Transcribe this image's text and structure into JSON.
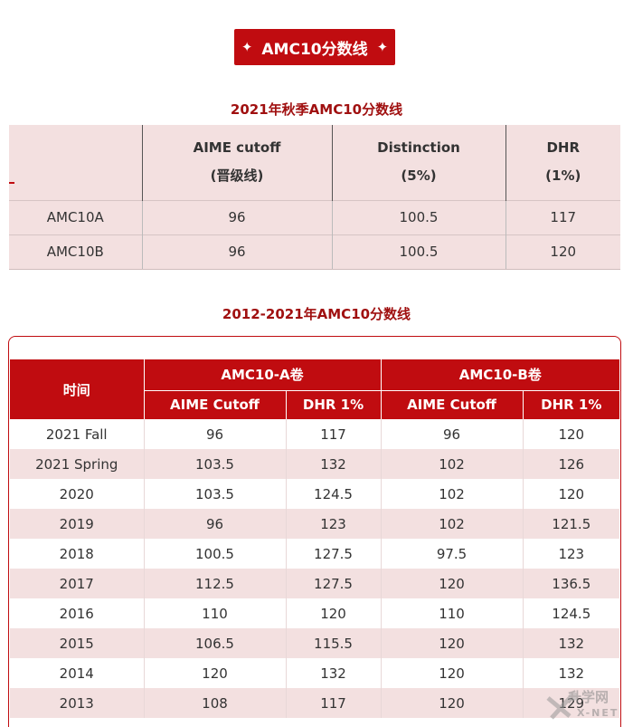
{
  "banner": {
    "star_left": "✦",
    "title": "AMC10分数线",
    "star_right": "✦"
  },
  "table1": {
    "caption": "2021年秋季AMC10分数线",
    "headers": [
      {
        "line1": "",
        "line2": ""
      },
      {
        "line1": "AIME cutoff",
        "line2": "(晋级线)"
      },
      {
        "line1": "Distinction",
        "line2": "(5%)"
      },
      {
        "line1": "DHR",
        "line2": "(1%)"
      }
    ],
    "rows": [
      [
        "AMC10A",
        "96",
        "100.5",
        "117"
      ],
      [
        "AMC10B",
        "96",
        "100.5",
        "120"
      ]
    ]
  },
  "table2": {
    "caption": "2012-2021年AMC10分数线",
    "col_time": "时间",
    "group_a": "AMC10-A卷",
    "group_b": "AMC10-B卷",
    "sub": [
      "AIME Cutoff",
      "DHR 1%",
      "AIME Cutoff",
      "DHR 1%"
    ],
    "rows": [
      [
        "2021 Fall",
        "96",
        "117",
        "96",
        "120"
      ],
      [
        "2021 Spring",
        "103.5",
        "132",
        "102",
        "126"
      ],
      [
        "2020",
        "103.5",
        "124.5",
        "102",
        "120"
      ],
      [
        "2019",
        "96",
        "123",
        "102",
        "121.5"
      ],
      [
        "2018",
        "100.5",
        "127.5",
        "97.5",
        "123"
      ],
      [
        "2017",
        "112.5",
        "127.5",
        "120",
        "136.5"
      ],
      [
        "2016",
        "110",
        "120",
        "110",
        "124.5"
      ],
      [
        "2015",
        "106.5",
        "115.5",
        "120",
        "132"
      ],
      [
        "2014",
        "120",
        "132",
        "120",
        "132"
      ],
      [
        "2013",
        "108",
        "117",
        "120",
        "129"
      ]
    ]
  },
  "watermark": {
    "text1": "升学网",
    "text2": "X-NET"
  },
  "colors": {
    "brand_red": "#c00c10",
    "stripe": "#f3e0e0",
    "caption_red": "#a01010"
  }
}
